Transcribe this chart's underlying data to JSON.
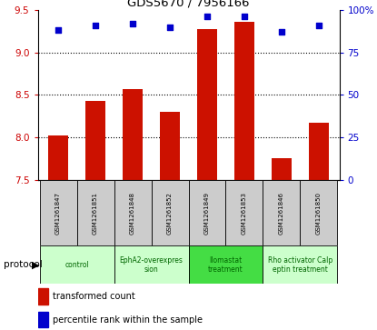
{
  "title": "GDS5670 / 7956166",
  "samples": [
    "GSM1261847",
    "GSM1261851",
    "GSM1261848",
    "GSM1261852",
    "GSM1261849",
    "GSM1261853",
    "GSM1261846",
    "GSM1261850"
  ],
  "transformed_counts": [
    8.02,
    8.43,
    8.57,
    8.3,
    9.27,
    9.36,
    7.76,
    8.17
  ],
  "percentile_ranks": [
    88,
    91,
    92,
    90,
    96,
    96,
    87,
    91
  ],
  "ylim_left": [
    7.5,
    9.5
  ],
  "yticks_left": [
    7.5,
    8.0,
    8.5,
    9.0,
    9.5
  ],
  "ylim_right": [
    0,
    100
  ],
  "yticks_right": [
    0,
    25,
    50,
    75,
    100
  ],
  "bar_bottom": 7.5,
  "protocol_groups": [
    {
      "start": 0,
      "end": 1,
      "label": "control",
      "color": "#ccffcc"
    },
    {
      "start": 2,
      "end": 3,
      "label": "EphA2-overexpres\nsion",
      "color": "#ccffcc"
    },
    {
      "start": 4,
      "end": 5,
      "label": "Ilomastat\ntreatment",
      "color": "#44dd44"
    },
    {
      "start": 6,
      "end": 7,
      "label": "Rho activator Calp\neptin treatment",
      "color": "#ccffcc"
    }
  ],
  "bar_color": "#cc1100",
  "dot_color": "#0000cc",
  "sample_box_color": "#cccccc",
  "ylabel_left_color": "#cc0000",
  "ylabel_right_color": "#0000cc",
  "legend_bar_label": "transformed count",
  "legend_dot_label": "percentile rank within the sample",
  "protocol_label": "protocol",
  "bar_width": 0.55
}
